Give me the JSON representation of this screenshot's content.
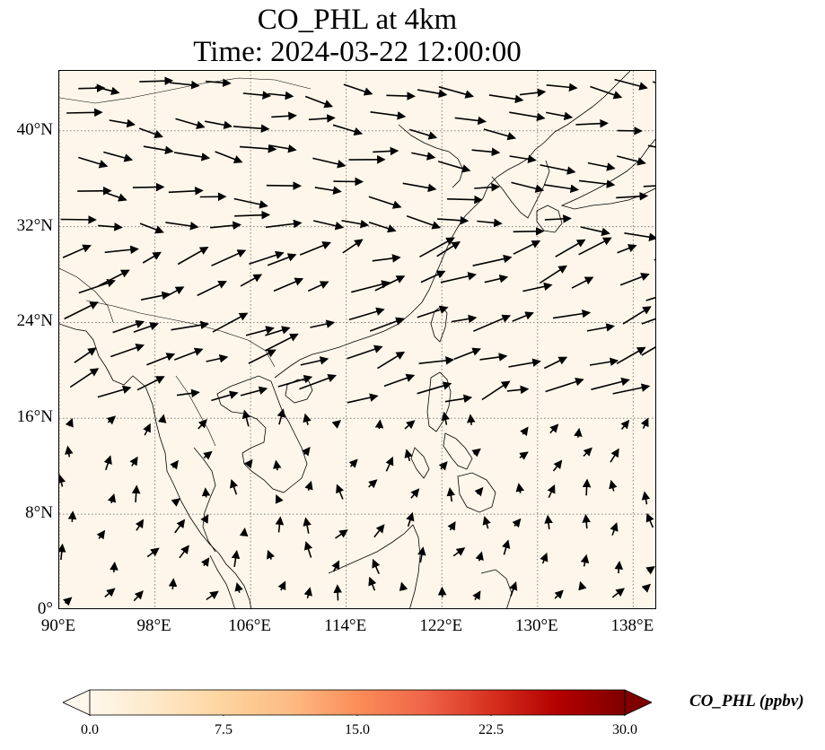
{
  "title": {
    "line1": "CO_PHL at 4km",
    "line2": "Time: 2024-03-22 12:00:00"
  },
  "map": {
    "extent": {
      "lon_min": 90,
      "lon_max": 140,
      "lat_min": 0,
      "lat_max": 45
    },
    "background_color": "#fef6ea",
    "coastline_color": "#000000",
    "gridline_style": "dotted",
    "gridline_color": "#808080",
    "lon_ticks": [
      90,
      98,
      106,
      114,
      122,
      130,
      138
    ],
    "lat_ticks": [
      0,
      8,
      16,
      24,
      32,
      40
    ],
    "lon_tick_labels": [
      "90°E",
      "98°E",
      "106°E",
      "114°E",
      "122°E",
      "130°E",
      "138°E"
    ],
    "lat_tick_labels": [
      "0°",
      "8°N",
      "16°N",
      "24°N",
      "32°N",
      "40°N"
    ],
    "vector_color": "#000000"
  },
  "colorbar": {
    "label": "CO_PHL (ppbv)",
    "min": 0.0,
    "max": 30.0,
    "ticks": [
      0.0,
      7.5,
      15.0,
      22.5,
      30.0
    ],
    "tick_labels": [
      "0.0",
      "7.5",
      "15.0",
      "22.5",
      "30.0"
    ],
    "colormap": "OrRd",
    "colors": [
      "#fff7ec",
      "#fee8c8",
      "#fdd49e",
      "#fdbb84",
      "#fc8d59",
      "#ef6548",
      "#d7301f",
      "#b30000",
      "#7f0000"
    ],
    "extend": "both"
  }
}
